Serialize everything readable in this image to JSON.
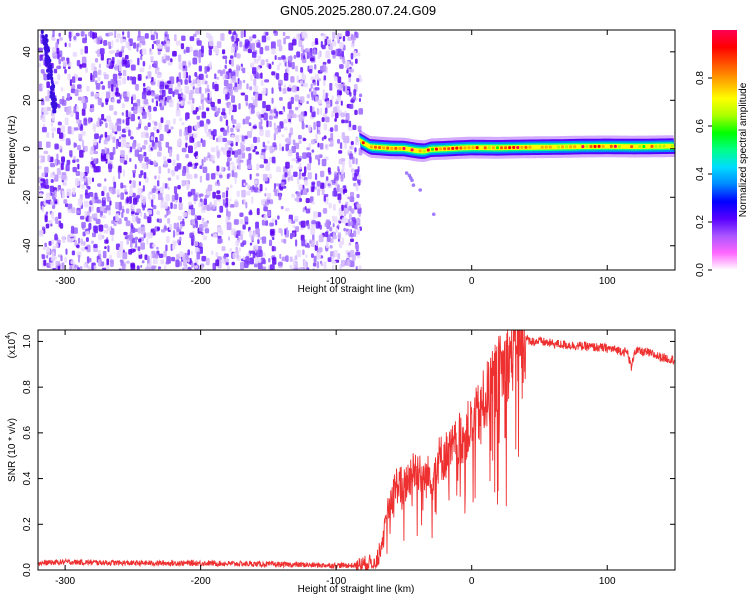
{
  "title": "GN05.2025.280.07.24.G09",
  "chart_data": [
    {
      "type": "heatmap",
      "xlabel": "Height of straight line (km)",
      "ylabel": "Frequency (Hz)",
      "xlim": [
        -320,
        150
      ],
      "ylim": [
        -50,
        49
      ],
      "x_ticks": [
        -300,
        -200,
        -100,
        0,
        100
      ],
      "x_tick_labels": [
        "-300",
        "-200",
        "-100",
        "0",
        "100"
      ],
      "y_ticks": [
        -40,
        -20,
        0,
        20,
        40
      ],
      "y_tick_labels": [
        "-40",
        "-20",
        "0",
        "20",
        "40"
      ],
      "noise_region_x": [
        -320,
        -83
      ],
      "signal_track": {
        "x": [
          -83,
          -75,
          -60,
          -50,
          -40,
          -35,
          -30,
          -20,
          -10,
          0,
          20,
          40,
          60,
          80,
          100,
          120,
          150
        ],
        "y": [
          3.5,
          0.8,
          0.2,
          0.1,
          -0.8,
          -1.0,
          -0.2,
          0.0,
          0.3,
          0.5,
          0.4,
          0.6,
          0.7,
          0.9,
          1.0,
          0.9,
          1.1
        ]
      },
      "faint_dots": [
        [
          -48,
          -10
        ],
        [
          -46,
          -11
        ],
        [
          -45,
          -12
        ],
        [
          -44,
          -13
        ],
        [
          -43,
          -15
        ],
        [
          -38,
          -17
        ],
        [
          -28,
          -27
        ]
      ],
      "grid": false,
      "colorbar": {
        "label": "Normalized spectral amplitude",
        "range": [
          0,
          1
        ],
        "ticks": [
          0.0,
          0.2,
          0.4,
          0.6,
          0.8
        ],
        "tick_labels": [
          "0.0",
          "0.2",
          "0.4",
          "0.6",
          "0.8"
        ],
        "colors": [
          "#ffffff",
          "#ff66ff",
          "#aa55ff",
          "#5500ff",
          "#0000ff",
          "#0088ff",
          "#00ddff",
          "#00ff88",
          "#00ff00",
          "#aaff00",
          "#ffff00",
          "#ffaa00",
          "#ff5500",
          "#ff0000",
          "#ff0055"
        ]
      }
    },
    {
      "type": "line",
      "xlabel": "Height of straight line (km)",
      "ylabel": "SNR (10 * v/v)",
      "scale_label": "(x10",
      "scale_exponent": "4",
      "xlim": [
        -320,
        150
      ],
      "ylim": [
        0,
        1.05
      ],
      "x_ticks": [
        -300,
        -200,
        -100,
        0,
        100
      ],
      "x_tick_labels": [
        "-300",
        "-200",
        "-100",
        "0",
        "100"
      ],
      "y_ticks": [
        0.0,
        0.2,
        0.4,
        0.6,
        0.8,
        1.0
      ],
      "y_tick_labels": [
        "0.0",
        "0.2",
        "0.4",
        "0.6",
        "0.8",
        "1.0"
      ],
      "grid": false,
      "series": [
        {
          "color": "#ee3030",
          "x": [
            -320,
            -300,
            -250,
            -200,
            -150,
            -100,
            -85,
            -70,
            -65,
            -60,
            -55,
            -50,
            -45,
            -40,
            -35,
            -30,
            -25,
            -20,
            -15,
            -10,
            -5,
            0,
            5,
            10,
            15,
            20,
            25,
            30,
            35,
            40,
            45,
            50,
            60,
            70,
            80,
            90,
            100,
            110,
            115,
            118,
            120,
            130,
            140,
            150
          ],
          "y": [
            0.03,
            0.035,
            0.03,
            0.03,
            0.025,
            0.02,
            0.02,
            0.04,
            0.15,
            0.3,
            0.38,
            0.36,
            0.42,
            0.45,
            0.4,
            0.42,
            0.48,
            0.5,
            0.52,
            0.56,
            0.6,
            0.63,
            0.68,
            0.75,
            0.8,
            0.86,
            0.9,
            0.95,
            0.99,
            1.01,
            1.0,
            1.0,
            0.99,
            0.985,
            0.98,
            0.975,
            0.97,
            0.96,
            0.95,
            0.88,
            0.96,
            0.95,
            0.93,
            0.92
          ]
        }
      ]
    }
  ]
}
